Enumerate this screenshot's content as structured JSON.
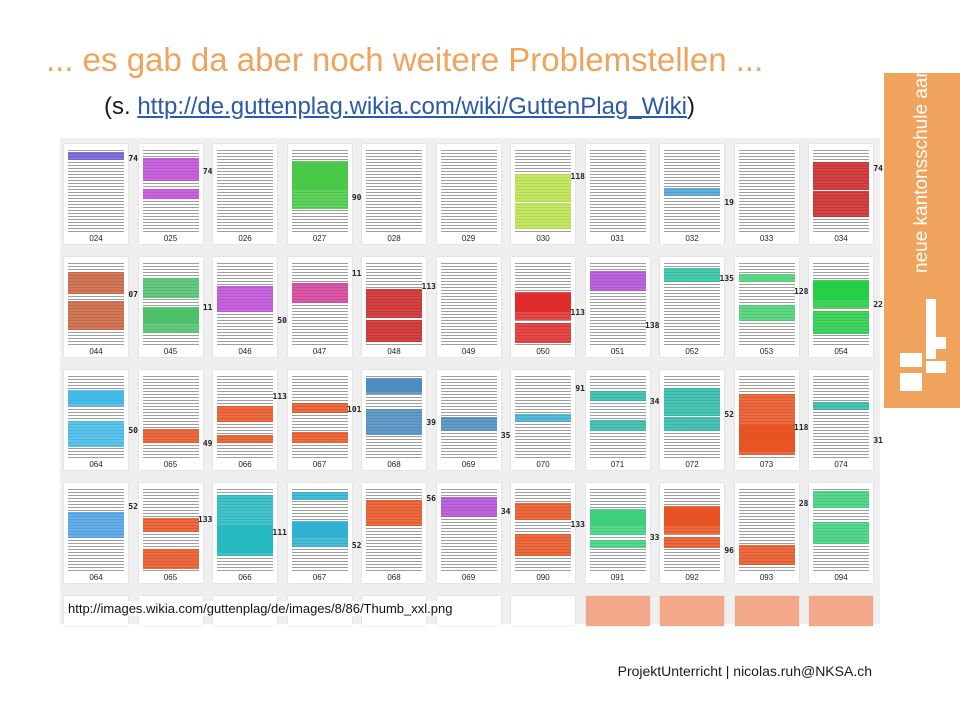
{
  "title": "... es gab da aber noch weitere Problemstellen ...",
  "subtitle": {
    "prefix": "(s. ",
    "link": "http://de.guttenplag.wikia.com/wiki/GuttenPlag_Wiki",
    "suffix": ")"
  },
  "brand": {
    "name": "neue kantonsschule aarau",
    "color": "#f0a35c"
  },
  "source_caption": "http://images.wikia.com/guttenplag/de/images/8/86/Thumb_xxl.png",
  "footer": "ProjektUnterricht | nicolas.ruh@NKSA.ch",
  "thumbnails": [
    [
      "024",
      "#6b5bd6"
    ],
    [
      "025",
      "#c04ad6"
    ],
    [
      "026",
      ""
    ],
    [
      "027",
      "#44c844"
    ],
    [
      "028",
      ""
    ],
    [
      "029",
      ""
    ],
    [
      "030",
      "#b8e34a"
    ],
    [
      "031",
      ""
    ],
    [
      "032",
      "#4aa0d6"
    ],
    [
      "033",
      ""
    ],
    [
      "034",
      "#cc2222"
    ],
    [
      "044",
      "#c8603a"
    ],
    [
      "045",
      "#4ac06a"
    ],
    [
      "046",
      "#c04ad6"
    ],
    [
      "047",
      "#d23a9a"
    ],
    [
      "048",
      "#cc2222"
    ],
    [
      "049",
      ""
    ],
    [
      "050",
      "#e02828"
    ],
    [
      "051",
      "#b04ad6"
    ],
    [
      "052",
      "#2ac0a0"
    ],
    [
      "053",
      "#44d070"
    ],
    [
      "054",
      "#22cc44"
    ],
    [
      "064",
      "#40b8e6"
    ],
    [
      "065",
      "#e8501e"
    ],
    [
      "066",
      "#e8501e"
    ],
    [
      "067",
      "#e8501e"
    ],
    [
      "068",
      "#4a8ac0"
    ],
    [
      "069",
      "#4a8ac0"
    ],
    [
      "070",
      "#3aaed0"
    ],
    [
      "071",
      "#2ab8a8"
    ],
    [
      "072",
      "#2ab8a8"
    ],
    [
      "073",
      "#e8501e"
    ],
    [
      "074",
      "#2ab8a8"
    ],
    [
      "064",
      "#4aa0e6"
    ],
    [
      "065",
      "#e8501e"
    ],
    [
      "066",
      "#22b8c0"
    ],
    [
      "067",
      "#2ab0d0"
    ],
    [
      "068",
      "#e8501e"
    ],
    [
      "069",
      "#b04ad6"
    ],
    [
      "090",
      "#e8501e"
    ],
    [
      "091",
      "#3ad07a"
    ],
    [
      "092",
      "#e8501e"
    ],
    [
      "093",
      "#e8501e"
    ],
    [
      "094",
      "#3ad07a"
    ]
  ],
  "margin_tags": [
    "74",
    "74",
    "90",
    "118",
    "19",
    "74",
    "07",
    "11",
    "50",
    "11",
    "113",
    "113",
    "138",
    "135",
    "128",
    "22",
    "50",
    "49",
    "113",
    "101",
    "39",
    "35",
    "91",
    "34",
    "52",
    "118",
    "31",
    "52",
    "133",
    "111",
    "52",
    "56",
    "34",
    "133",
    "33",
    "96",
    "28"
  ]
}
